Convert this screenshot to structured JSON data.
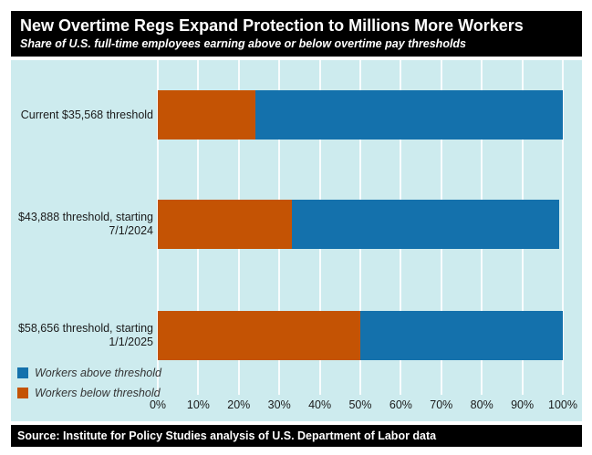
{
  "colors": {
    "workers_above": "#1471ac",
    "workers_below": "#c45304",
    "chart_background": "#cdebee",
    "panel_background": "#000000",
    "panel_text": "#ffffff",
    "gridline": "#ffffff"
  },
  "chart_data": {
    "type": "bar",
    "orientation": "horizontal",
    "stacked": true,
    "title": "New Overtime Regs Expand Protection to Millions More Workers",
    "subtitle": "Share of U.S. full-time employees earning above or below overtime pay thresholds",
    "categories": [
      "Current $35,568 threshold",
      "$43,888 threshold, starting 7/1/2024",
      "$58,656 threshold, starting 1/1/2025"
    ],
    "series": [
      {
        "name": "Workers below threshold",
        "color": "#c45304",
        "values": [
          24,
          33,
          50
        ]
      },
      {
        "name": "Workers above threshold",
        "color": "#1471ac",
        "values": [
          76,
          66,
          50
        ]
      }
    ],
    "xlim": [
      0,
      100
    ],
    "x_ticks": [
      "0%",
      "10%",
      "20%",
      "30%",
      "40%",
      "50%",
      "60%",
      "70%",
      "80%",
      "90%",
      "100%"
    ],
    "grid": true,
    "legend_position": "bottom-left",
    "legend": [
      {
        "label": "Workers above threshold",
        "color": "#1471ac"
      },
      {
        "label": "Workers below threshold",
        "color": "#c45304"
      }
    ],
    "source": "Source: Institute for Policy Studies analysis of U.S. Department of Labor data"
  }
}
